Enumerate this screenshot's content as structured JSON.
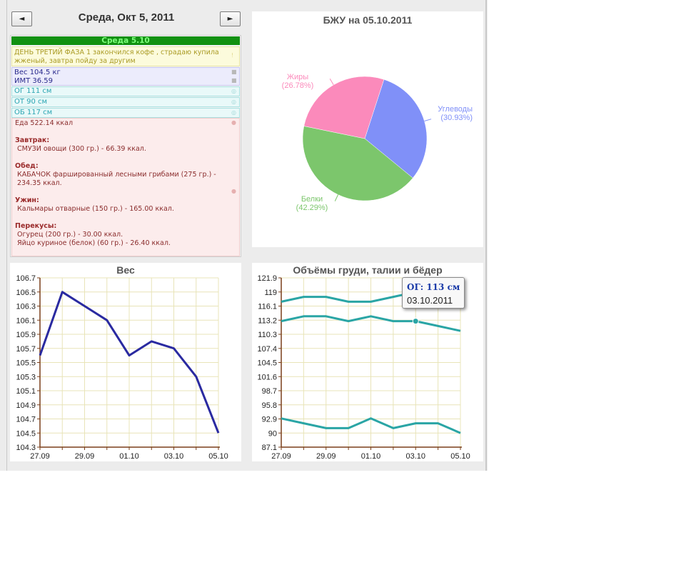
{
  "nav": {
    "prev_label": "◄",
    "next_label": "►",
    "date_title": "Среда, Окт 5, 2011"
  },
  "diary": {
    "day_header": "Среда 5.10",
    "note": "ДЕНЬ ТРЕТИЙ ФАЗА 1 закончился кофе , страдаю купила жженый, завтра пойду за другим",
    "weight": "Вес 104.5 кг",
    "bmi": "ИМТ 36.59",
    "chest": "ОГ 111 см",
    "waist": "ОТ 90 см",
    "hips": "ОБ 117 см",
    "food_total": "Еда 522.14 ккал",
    "meals": [
      {
        "label": "Завтрак:",
        "items": [
          "СМУЗИ овощи (300 гр.) - 66.39 ккал."
        ]
      },
      {
        "label": "Обед:",
        "items": [
          "КАБАЧОК фаршированный лесными грибами (275 гр.) - 234.35 ккал."
        ]
      },
      {
        "label": "Ужин:",
        "items": [
          "Кальмары отварные (150 гр.) - 165.00 ккал."
        ]
      },
      {
        "label": "Перекусы:",
        "items": [
          "Огурец (200 гр.) - 30.00 ккал.",
          "Яйцо куриное (белок) (60 гр.) - 26.40 ккал."
        ]
      }
    ]
  },
  "colors": {
    "weight_line": "#2a2aa0",
    "volume_line": "#2aa5a5",
    "pie_carbs": "#8090f8",
    "pie_fat": "#fb8abb",
    "pie_protein": "#7cc66c",
    "axis": "#7a3f1a",
    "grid": "#e8e4b8"
  },
  "chart_data": [
    {
      "type": "pie",
      "title": "БЖУ на 05.10.2011",
      "slices": [
        {
          "name": "Углеводы",
          "value": 30.93,
          "label": "(30.93%)",
          "color": "#8090f8"
        },
        {
          "name": "Белки",
          "value": 42.29,
          "label": "(42.29%)",
          "color": "#7cc66c"
        },
        {
          "name": "Жиры",
          "value": 26.78,
          "label": "(26.78%)",
          "color": "#fb8abb"
        }
      ]
    },
    {
      "type": "line",
      "title": "Вес",
      "x": [
        "27.09",
        "28.09",
        "29.09",
        "30.09",
        "01.10",
        "02.10",
        "03.10",
        "04.10",
        "05.10"
      ],
      "x_tick_labels": [
        "27.09",
        "29.09",
        "01.10",
        "03.10",
        "05.10"
      ],
      "y_ticks": [
        "106.7",
        "106.5",
        "106.3",
        "106.1",
        "105.9",
        "105.7",
        "105.5",
        "105.3",
        "105.1",
        "104.9",
        "104.7",
        "104.5",
        "104.3"
      ],
      "ylim": [
        104.3,
        106.7
      ],
      "series": [
        {
          "values": [
            105.6,
            106.5,
            106.3,
            106.1,
            105.6,
            105.8,
            105.7,
            105.3,
            104.5
          ],
          "color": "#2a2aa0"
        }
      ],
      "grid": true
    },
    {
      "type": "line",
      "title": "Объёмы груди, талии и бёдер",
      "x": [
        "27.09",
        "28.09",
        "29.09",
        "30.09",
        "01.10",
        "02.10",
        "03.10",
        "04.10",
        "05.10"
      ],
      "x_tick_labels": [
        "27.09",
        "29.09",
        "01.10",
        "03.10",
        "05.10"
      ],
      "y_ticks": [
        "121.9",
        "119",
        "116.1",
        "113.2",
        "110.3",
        "107.4",
        "104.5",
        "101.6",
        "98.7",
        "95.8",
        "92.9",
        "90",
        "87.1"
      ],
      "ylim": [
        87.1,
        121.9
      ],
      "series": [
        {
          "values": [
            117,
            118,
            118,
            117,
            117,
            118,
            119,
            null,
            null
          ],
          "color": "#2aa5a5"
        },
        {
          "values": [
            113,
            114,
            114,
            113,
            114,
            113,
            113,
            112,
            111
          ],
          "color": "#2aa5a5"
        },
        {
          "values": [
            93,
            92,
            91,
            91,
            93,
            91,
            92,
            92,
            90
          ],
          "color": "#2aa5a5"
        }
      ],
      "grid": true,
      "tooltip": {
        "title": "ОГ: 113 см",
        "date": "03.10.2011",
        "series_index": 1,
        "point_index": 6
      }
    }
  ]
}
